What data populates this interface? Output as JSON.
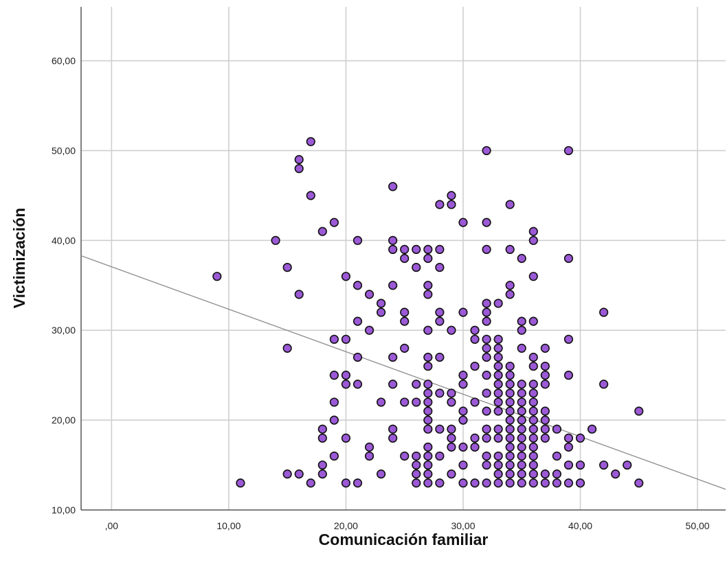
{
  "chart_data": {
    "type": "scatter",
    "xlabel": "Comunicación familiar",
    "ylabel": "Victimización",
    "xlim": [
      -2.6,
      52.4
    ],
    "ylim": [
      10,
      66
    ],
    "x_ticks": [
      0,
      10,
      20,
      30,
      40,
      50
    ],
    "x_tick_labels": [
      ",00",
      "10,00",
      "20,00",
      "30,00",
      "40,00",
      "50,00"
    ],
    "y_ticks": [
      10,
      20,
      30,
      40,
      50,
      60
    ],
    "y_tick_labels": [
      "10,00",
      "20,00",
      "30,00",
      "40,00",
      "50,00",
      "60,00"
    ],
    "grid": true,
    "point_color": "#9b59d6",
    "fit_line": {
      "x": [
        -2.6,
        52.4
      ],
      "y": [
        38.3,
        12.3
      ]
    },
    "points": [
      [
        9,
        36
      ],
      [
        11,
        13
      ],
      [
        14,
        40
      ],
      [
        15,
        37
      ],
      [
        15,
        28
      ],
      [
        15,
        14
      ],
      [
        16,
        49
      ],
      [
        16,
        48
      ],
      [
        16,
        34
      ],
      [
        16,
        14
      ],
      [
        17,
        51
      ],
      [
        17,
        45
      ],
      [
        17,
        13
      ],
      [
        18,
        41
      ],
      [
        18,
        19
      ],
      [
        18,
        18
      ],
      [
        18,
        15
      ],
      [
        18,
        14
      ],
      [
        19,
        42
      ],
      [
        19,
        29
      ],
      [
        19,
        25
      ],
      [
        19,
        22
      ],
      [
        19,
        20
      ],
      [
        19,
        16
      ],
      [
        20,
        36
      ],
      [
        20,
        29
      ],
      [
        20,
        25
      ],
      [
        20,
        24
      ],
      [
        20,
        18
      ],
      [
        20,
        13
      ],
      [
        21,
        40
      ],
      [
        21,
        35
      ],
      [
        21,
        31
      ],
      [
        21,
        27
      ],
      [
        21,
        24
      ],
      [
        21,
        13
      ],
      [
        22,
        34
      ],
      [
        22,
        30
      ],
      [
        22,
        17
      ],
      [
        22,
        16
      ],
      [
        23,
        33
      ],
      [
        23,
        32
      ],
      [
        23,
        22
      ],
      [
        23,
        14
      ],
      [
        24,
        46
      ],
      [
        24,
        40
      ],
      [
        24,
        39
      ],
      [
        24,
        35
      ],
      [
        24,
        27
      ],
      [
        24,
        24
      ],
      [
        24,
        19
      ],
      [
        24,
        18
      ],
      [
        25,
        39
      ],
      [
        25,
        38
      ],
      [
        25,
        32
      ],
      [
        25,
        31
      ],
      [
        25,
        28
      ],
      [
        25,
        22
      ],
      [
        25,
        16
      ],
      [
        26,
        39
      ],
      [
        26,
        37
      ],
      [
        26,
        24
      ],
      [
        26,
        22
      ],
      [
        26,
        16
      ],
      [
        26,
        15
      ],
      [
        26,
        14
      ],
      [
        26,
        13
      ],
      [
        27,
        39
      ],
      [
        27,
        38
      ],
      [
        27,
        35
      ],
      [
        27,
        34
      ],
      [
        27,
        30
      ],
      [
        27,
        27
      ],
      [
        27,
        26
      ],
      [
        27,
        24
      ],
      [
        27,
        23
      ],
      [
        27,
        22
      ],
      [
        27,
        21
      ],
      [
        27,
        20
      ],
      [
        27,
        19
      ],
      [
        27,
        17
      ],
      [
        27,
        16
      ],
      [
        27,
        15
      ],
      [
        27,
        14
      ],
      [
        27,
        13
      ],
      [
        28,
        44
      ],
      [
        28,
        39
      ],
      [
        28,
        37
      ],
      [
        28,
        32
      ],
      [
        28,
        31
      ],
      [
        28,
        27
      ],
      [
        28,
        23
      ],
      [
        28,
        19
      ],
      [
        28,
        16
      ],
      [
        28,
        13
      ],
      [
        29,
        45
      ],
      [
        29,
        44
      ],
      [
        29,
        30
      ],
      [
        29,
        23
      ],
      [
        29,
        22
      ],
      [
        29,
        19
      ],
      [
        29,
        18
      ],
      [
        29,
        17
      ],
      [
        29,
        14
      ],
      [
        30,
        42
      ],
      [
        30,
        32
      ],
      [
        30,
        25
      ],
      [
        30,
        24
      ],
      [
        30,
        21
      ],
      [
        30,
        20
      ],
      [
        30,
        17
      ],
      [
        30,
        15
      ],
      [
        30,
        13
      ],
      [
        31,
        30
      ],
      [
        31,
        29
      ],
      [
        31,
        26
      ],
      [
        31,
        22
      ],
      [
        31,
        18
      ],
      [
        31,
        17
      ],
      [
        31,
        13
      ],
      [
        32,
        50
      ],
      [
        32,
        42
      ],
      [
        32,
        39
      ],
      [
        32,
        33
      ],
      [
        32,
        32
      ],
      [
        32,
        31
      ],
      [
        32,
        29
      ],
      [
        32,
        28
      ],
      [
        32,
        27
      ],
      [
        32,
        25
      ],
      [
        32,
        23
      ],
      [
        32,
        21
      ],
      [
        32,
        19
      ],
      [
        32,
        18
      ],
      [
        32,
        16
      ],
      [
        32,
        15
      ],
      [
        32,
        13
      ],
      [
        33,
        33
      ],
      [
        33,
        29
      ],
      [
        33,
        28
      ],
      [
        33,
        27
      ],
      [
        33,
        26
      ],
      [
        33,
        25
      ],
      [
        33,
        24
      ],
      [
        33,
        23
      ],
      [
        33,
        22
      ],
      [
        33,
        21
      ],
      [
        33,
        19
      ],
      [
        33,
        18
      ],
      [
        33,
        16
      ],
      [
        33,
        15
      ],
      [
        33,
        14
      ],
      [
        33,
        13
      ],
      [
        34,
        44
      ],
      [
        34,
        39
      ],
      [
        34,
        35
      ],
      [
        34,
        34
      ],
      [
        34,
        26
      ],
      [
        34,
        25
      ],
      [
        34,
        24
      ],
      [
        34,
        23
      ],
      [
        34,
        22
      ],
      [
        34,
        21
      ],
      [
        34,
        20
      ],
      [
        34,
        19
      ],
      [
        34,
        18
      ],
      [
        34,
        17
      ],
      [
        34,
        16
      ],
      [
        34,
        15
      ],
      [
        34,
        14
      ],
      [
        34,
        13
      ],
      [
        35,
        38
      ],
      [
        35,
        31
      ],
      [
        35,
        30
      ],
      [
        35,
        28
      ],
      [
        35,
        24
      ],
      [
        35,
        23
      ],
      [
        35,
        22
      ],
      [
        35,
        21
      ],
      [
        35,
        20
      ],
      [
        35,
        19
      ],
      [
        35,
        18
      ],
      [
        35,
        17
      ],
      [
        35,
        16
      ],
      [
        35,
        15
      ],
      [
        35,
        14
      ],
      [
        35,
        13
      ],
      [
        36,
        41
      ],
      [
        36,
        40
      ],
      [
        36,
        36
      ],
      [
        36,
        31
      ],
      [
        36,
        27
      ],
      [
        36,
        26
      ],
      [
        36,
        24
      ],
      [
        36,
        23
      ],
      [
        36,
        22
      ],
      [
        36,
        21
      ],
      [
        36,
        20
      ],
      [
        36,
        19
      ],
      [
        36,
        18
      ],
      [
        36,
        17
      ],
      [
        36,
        16
      ],
      [
        36,
        15
      ],
      [
        36,
        14
      ],
      [
        36,
        13
      ],
      [
        37,
        28
      ],
      [
        37,
        26
      ],
      [
        37,
        25
      ],
      [
        37,
        24
      ],
      [
        37,
        21
      ],
      [
        37,
        20
      ],
      [
        37,
        19
      ],
      [
        37,
        18
      ],
      [
        37,
        14
      ],
      [
        37,
        13
      ],
      [
        38,
        19
      ],
      [
        38,
        16
      ],
      [
        38,
        14
      ],
      [
        38,
        13
      ],
      [
        39,
        50
      ],
      [
        39,
        38
      ],
      [
        39,
        29
      ],
      [
        39,
        25
      ],
      [
        39,
        18
      ],
      [
        39,
        17
      ],
      [
        39,
        15
      ],
      [
        39,
        13
      ],
      [
        40,
        18
      ],
      [
        40,
        15
      ],
      [
        40,
        13
      ],
      [
        41,
        19
      ],
      [
        42,
        32
      ],
      [
        42,
        24
      ],
      [
        42,
        15
      ],
      [
        43,
        14
      ],
      [
        44,
        15
      ],
      [
        45,
        21
      ],
      [
        45,
        13
      ]
    ]
  }
}
